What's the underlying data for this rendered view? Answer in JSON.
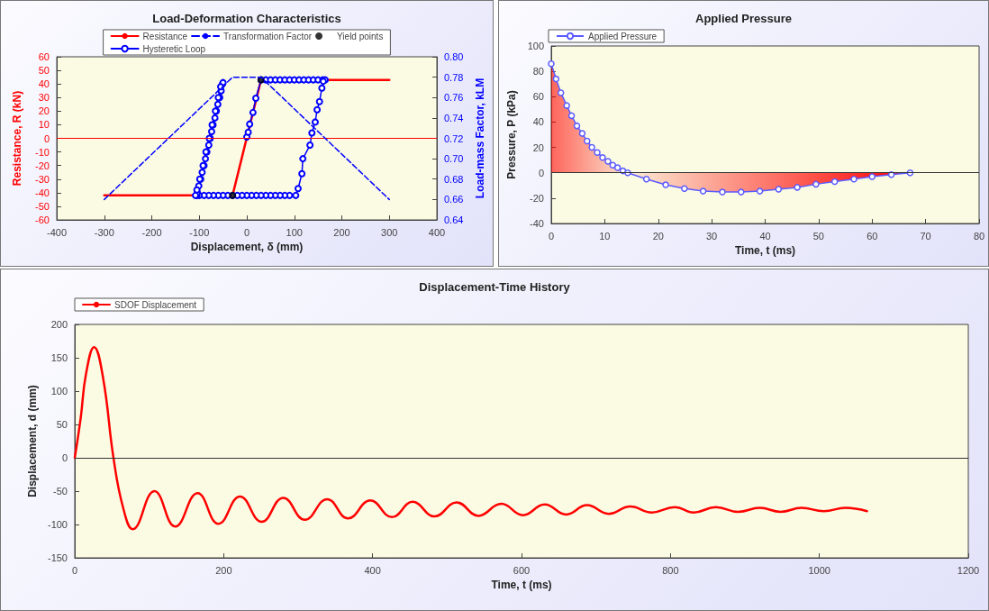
{
  "chart_data": [
    {
      "type": "line",
      "title": "Load-Deformation Characteristics",
      "xlabel": "Displacement, δ (mm)",
      "ylabel": "Resistance, R (kN)",
      "y2label": "Load-mass Factor, kLM",
      "xlim": [
        -400,
        400
      ],
      "xticks": [
        -400,
        -300,
        -200,
        -100,
        0,
        100,
        200,
        300,
        400
      ],
      "ylim": [
        -60,
        60
      ],
      "yticks": [
        -60,
        -50,
        -40,
        -30,
        -20,
        -10,
        0,
        10,
        20,
        30,
        40,
        50,
        60
      ],
      "y2lim": [
        0.64,
        0.8
      ],
      "y2ticks": [
        {
          "value": 0.64,
          "label": "0.64"
        },
        {
          "value": 0.66,
          "label": "0.66"
        },
        {
          "value": 0.68,
          "label": "0.68"
        },
        {
          "value": 0.7,
          "label": "0.70"
        },
        {
          "value": 0.72,
          "label": "0.72"
        },
        {
          "value": 0.74,
          "label": "0.74"
        },
        {
          "value": 0.76,
          "label": "0.76"
        },
        {
          "value": 0.78,
          "label": "0.78"
        },
        {
          "value": 0.8,
          "label": "0.80"
        }
      ],
      "grid": false,
      "legend": "top",
      "ref_lines": [
        {
          "axis": "y",
          "value": 0,
          "color": "#ff0000"
        }
      ],
      "series": [
        {
          "name": "Resistance",
          "color": "#ff0000",
          "marker": "none",
          "x": [
            -300,
            -30,
            30,
            300
          ],
          "values": [
            -42,
            -42,
            43,
            43
          ]
        },
        {
          "name": "Transformation Factor",
          "color": "#0000ff",
          "marker": "none",
          "line_style": "dashed",
          "axis": "y2",
          "x": [
            -300,
            -30,
            30,
            300
          ],
          "values": [
            0.66,
            0.78,
            0.78,
            0.66
          ]
        },
        {
          "name": "Yield points",
          "type": "scatter",
          "color": "#000000",
          "marker": "circle",
          "x": [
            -30,
            30
          ],
          "values": [
            -42,
            43
          ]
        },
        {
          "name": "Hysteretic Loop",
          "color": "#0000ff",
          "marker": "circle",
          "x": [
            0,
            3,
            6,
            13,
            19,
            30,
            40,
            50,
            60,
            70,
            80,
            90,
            100,
            110,
            120,
            130,
            140,
            150,
            160,
            165,
            161,
            158,
            153,
            148,
            144,
            137,
            133,
            118,
            116,
            108,
            103,
            90,
            80,
            70,
            60,
            50,
            40,
            30,
            20,
            10,
            0,
            -10,
            -20,
            -30,
            -40,
            -50,
            -60,
            -70,
            -80,
            -90,
            -100,
            -105,
            -104,
            -101,
            -97,
            -94,
            -90,
            -87,
            -84,
            -80,
            -77,
            -74,
            -71,
            -67,
            -64,
            -61,
            -57,
            -54,
            -51,
            -50,
            -55,
            -60,
            -66,
            -73,
            -79,
            -86,
            -92,
            -99,
            -105,
            -108
          ],
          "values": [
            1,
            4.5,
            10.5,
            19,
            29.5,
            43,
            43,
            43,
            43,
            43,
            43,
            43,
            43,
            43,
            43,
            43,
            43,
            43,
            43,
            43,
            42,
            37,
            27,
            21,
            12,
            4,
            -5,
            -15,
            -26,
            -37,
            -42,
            -42,
            -42,
            -42,
            -42,
            -42,
            -42,
            -42,
            -42,
            -42,
            -42,
            -42,
            -42,
            -42,
            -42,
            -42,
            -42,
            -42,
            -42,
            -42,
            -42,
            -42,
            -40,
            -35,
            -30,
            -25,
            -20,
            -15,
            -10,
            -5,
            0,
            5,
            10,
            15,
            20,
            25,
            30,
            35,
            40,
            41,
            38,
            30,
            20,
            10,
            0,
            -10,
            -20,
            -30,
            -38,
            -42
          ]
        }
      ]
    },
    {
      "type": "area",
      "title": "Applied Pressure",
      "xlabel": "Time, t (ms)",
      "ylabel": "Pressure, P (kPa)",
      "xlim": [
        0,
        80
      ],
      "xticks": [
        0,
        10,
        20,
        30,
        40,
        50,
        60,
        70,
        80
      ],
      "ylim": [
        -40,
        100
      ],
      "yticks": [
        -40,
        -20,
        0,
        20,
        40,
        60,
        80,
        100
      ],
      "grid": false,
      "legend": "top left",
      "marker": "circle",
      "ref_lines": [
        {
          "axis": "y",
          "value": 0,
          "color": "#333333"
        }
      ],
      "series": [
        {
          "name": "Applied Pressure",
          "color": "#ff0000",
          "x": [
            0,
            0.9,
            1.8,
            2.9,
            3.8,
            4.8,
            5.8,
            6.7,
            7.6,
            8.6,
            9.6,
            10.6,
            11.5,
            12.4,
            13.4,
            14.3,
            17.8,
            21.4,
            24.9,
            28.4,
            32,
            35.5,
            39,
            42.5,
            46,
            49.5,
            53,
            56.6,
            60,
            63.6,
            67.1
          ],
          "values": [
            86,
            74,
            63,
            53,
            45,
            37,
            31,
            25,
            20,
            16,
            12,
            9,
            6,
            4,
            1.5,
            0,
            -5,
            -9.5,
            -12.5,
            -14.5,
            -15.2,
            -15.2,
            -14.5,
            -13,
            -11.5,
            -9,
            -7,
            -5,
            -3,
            -1.5,
            0
          ]
        }
      ]
    },
    {
      "type": "line",
      "title": "Displacement-Time History",
      "xlabel": "Time, t (ms)",
      "ylabel": "Displacement, d (mm)",
      "xlim": [
        0,
        1200
      ],
      "xticks": [
        0,
        200,
        400,
        600,
        800,
        1000,
        1200
      ],
      "ylim": [
        -150,
        200
      ],
      "yticks": [
        -150,
        -100,
        -50,
        0,
        50,
        100,
        150,
        200
      ],
      "grid": false,
      "legend": "top left",
      "marker": "none",
      "ref_lines": [
        {
          "axis": "y",
          "value": 0,
          "color": "#333333"
        }
      ],
      "series": [
        {
          "name": "SDOF Displacement",
          "color": "#ff0000",
          "x": [
            0,
            8,
            15,
            26,
            38,
            52,
            65,
            78,
            107,
            135,
            165,
            193,
            222,
            251,
            280,
            309,
            339,
            367,
            397,
            426,
            454,
            483,
            513,
            542,
            573,
            602,
            631,
            660,
            688,
            717,
            746,
            775,
            806,
            831,
            861,
            891,
            920,
            948,
            976,
            1006,
            1035,
            1064
          ],
          "values": [
            0,
            60,
            125,
            166,
            120,
            0,
            -75,
            -107,
            -50,
            -103,
            -53,
            -99,
            -58,
            -96,
            -60,
            -93,
            -62,
            -91,
            -64,
            -89,
            -66,
            -88,
            -67,
            -87,
            -69,
            -86,
            -70,
            -85,
            -71,
            -84,
            -73,
            -82,
            -74,
            -82,
            -74,
            -81,
            -75,
            -81,
            -75,
            -80,
            -75,
            -80
          ]
        }
      ]
    }
  ]
}
